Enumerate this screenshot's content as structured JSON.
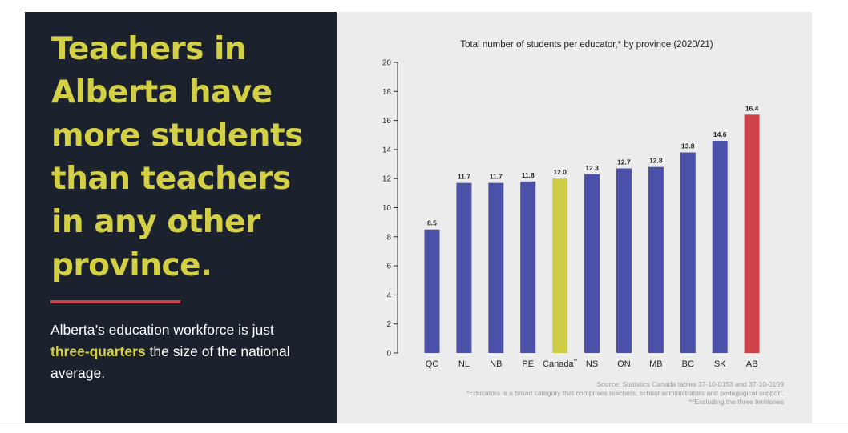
{
  "headline": "Teachers in Alberta have more students than teachers in any other province.",
  "subtext": {
    "before": "Alberta’s education workforce is just ",
    "highlight": "three-quarters",
    "after": " the size of the national average."
  },
  "colors": {
    "panel_dark": "#1b212d",
    "headline_yellow": "#d4d046",
    "accent_red": "#c84349",
    "bar_blue": "#4b51a8",
    "bar_canada": "#cfcc45",
    "bar_alberta": "#cd4149"
  },
  "chart_data": {
    "type": "bar",
    "title": "Total number of students per educator,* by province (2020/21)",
    "categories": [
      "QC",
      "NL",
      "NB",
      "PE",
      "Canada",
      "NS",
      "ON",
      "MB",
      "BC",
      "SK",
      "AB"
    ],
    "category_suffix": {
      "Canada": "**"
    },
    "values": [
      8.5,
      11.7,
      11.7,
      11.8,
      12.0,
      12.3,
      12.7,
      12.8,
      13.8,
      14.6,
      16.4
    ],
    "value_labels": [
      "8.5",
      "11.7",
      "11.7",
      "11.8",
      "12.0",
      "12.3",
      "12.7",
      "12.8",
      "13.8",
      "14.6",
      "16.4"
    ],
    "highlight": {
      "Canada": "#cfcc45",
      "AB": "#cd4149"
    },
    "default_color": "#4b51a8",
    "ylim": [
      0,
      20
    ],
    "yticks": [
      0,
      2,
      4,
      6,
      8,
      10,
      12,
      14,
      16,
      18,
      20
    ],
    "xlabel": "",
    "ylabel": "",
    "grid": false,
    "legend": "none"
  },
  "source_lines": [
    "Source: Statistics Canada tables 37-10-0153 and 37-10-0109",
    "*Educators is a broad category that comprises teachers, school administrators and pedagogical support.",
    "**Excluding the three territories"
  ]
}
